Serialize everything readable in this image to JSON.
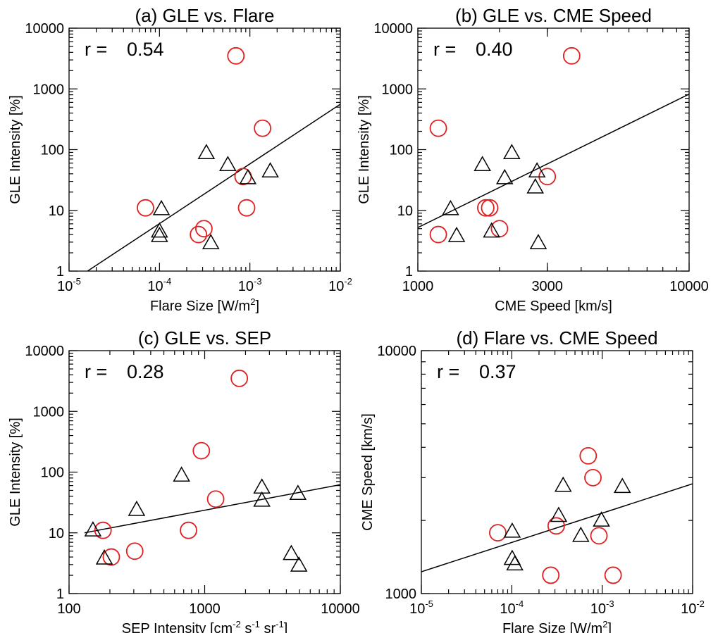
{
  "chart_data": [
    {
      "type": "scatter",
      "title": "(a) GLE vs. Flare",
      "xlabel_parts": [
        "Flare Size [W/m",
        "2",
        "]"
      ],
      "ylabel": "GLE Intensity [%]",
      "x_scale": "log",
      "y_scale": "log",
      "xlim": [
        1e-05,
        0.01
      ],
      "ylim": [
        1,
        10000
      ],
      "xticks": [
        1e-05,
        0.0001,
        0.001,
        0.01
      ],
      "xtick_labels": [
        [
          "10",
          "-5"
        ],
        [
          "10",
          "-4"
        ],
        [
          "10",
          "-3"
        ],
        [
          "10",
          "-2"
        ]
      ],
      "yticks": [
        1,
        10,
        100,
        1000,
        10000
      ],
      "ytick_labels": [
        "1",
        "10",
        "100",
        "1000",
        "10000"
      ],
      "r_label": "r =",
      "r_value": "0.54",
      "fit_line": [
        [
          1.6e-05,
          1
        ],
        [
          0.01,
          560
        ]
      ],
      "series": [
        {
          "marker": "circle",
          "color": "#e02020",
          "points": [
            [
              7e-05,
              11
            ],
            [
              0.0007,
              3500
            ],
            [
              0.00138,
              225
            ],
            [
              0.00084,
              36
            ],
            [
              0.00092,
              11
            ],
            [
              0.00031,
              5
            ],
            [
              0.00027,
              4
            ]
          ]
        },
        {
          "marker": "triangle",
          "color": "#000000",
          "points": [
            [
              0.000105,
              10.5
            ],
            [
              0.0001,
              4.5
            ],
            [
              0.0001,
              3.8
            ],
            [
              0.00033,
              88
            ],
            [
              0.00057,
              56
            ],
            [
              0.00095,
              34
            ],
            [
              0.00168,
              44
            ],
            [
              0.00037,
              2.9
            ]
          ]
        }
      ]
    },
    {
      "type": "scatter",
      "title": "(b) GLE vs. CME Speed",
      "xlabel_parts": [
        "CME Speed [km/s]"
      ],
      "ylabel": "GLE Intensity [%]",
      "x_scale": "log",
      "y_scale": "log",
      "xlim": [
        1000,
        10000
      ],
      "ylim": [
        1,
        10000
      ],
      "xticks": [
        1000,
        3000,
        10000
      ],
      "xtick_labels": [
        [
          "1000"
        ],
        [
          "3000"
        ],
        [
          "10000"
        ]
      ],
      "yticks": [
        1,
        10,
        100,
        1000,
        10000
      ],
      "ytick_labels": [
        "1",
        "10",
        "100",
        "1000",
        "10000"
      ],
      "r_label": "r =",
      "r_value": "0.40",
      "fit_line": [
        [
          1000,
          5.2
        ],
        [
          10000,
          820
        ]
      ],
      "series": [
        {
          "marker": "circle",
          "color": "#e02020",
          "points": [
            [
              1190,
              225
            ],
            [
              1190,
              4
            ],
            [
              1780,
              11
            ],
            [
              1840,
              11
            ],
            [
              2000,
              5
            ],
            [
              3000,
              36
            ],
            [
              3690,
              3500
            ]
          ]
        },
        {
          "marker": "triangle",
          "color": "#000000",
          "points": [
            [
              1320,
              10.5
            ],
            [
              1390,
              3.8
            ],
            [
              1730,
              56
            ],
            [
              1870,
              4.5
            ],
            [
              2090,
              34
            ],
            [
              2220,
              88
            ],
            [
              2710,
              24
            ],
            [
              2750,
              44
            ],
            [
              2780,
              2.9
            ]
          ]
        }
      ]
    },
    {
      "type": "scatter",
      "title": "(c) GLE vs. SEP",
      "xlabel_parts": [
        "SEP Intensity [cm",
        "-2",
        " s",
        "-1",
        " sr",
        "-1",
        "]"
      ],
      "ylabel": "GLE Intensity [%]",
      "x_scale": "log",
      "y_scale": "log",
      "xlim": [
        100,
        10000
      ],
      "ylim": [
        1,
        10000
      ],
      "xticks": [
        100,
        1000,
        10000
      ],
      "xtick_labels": [
        [
          "100"
        ],
        [
          "1000"
        ],
        [
          "10000"
        ]
      ],
      "yticks": [
        1,
        10,
        100,
        1000,
        10000
      ],
      "ytick_labels": [
        "1",
        "10",
        "100",
        "1000",
        "10000"
      ],
      "r_label": "r =",
      "r_value": "0.28",
      "fit_line": [
        [
          130,
          10
        ],
        [
          10000,
          62
        ]
      ],
      "series": [
        {
          "marker": "circle",
          "color": "#e02020",
          "points": [
            [
              178,
              11
            ],
            [
              205,
              4
            ],
            [
              305,
              5
            ],
            [
              760,
              11
            ],
            [
              945,
              225
            ],
            [
              1205,
              36
            ],
            [
              1800,
              3500
            ]
          ]
        },
        {
          "marker": "triangle",
          "color": "#000000",
          "points": [
            [
              150,
              11
            ],
            [
              182,
              3.8
            ],
            [
              315,
              24
            ],
            [
              675,
              88
            ],
            [
              2640,
              56
            ],
            [
              2640,
              34
            ],
            [
              4350,
              4.5
            ],
            [
              4870,
              44
            ],
            [
              4950,
              2.9
            ]
          ]
        }
      ]
    },
    {
      "type": "scatter",
      "title": "(d) Flare vs. CME Speed",
      "xlabel_parts": [
        "Flare Size [W/m",
        "2",
        "]"
      ],
      "ylabel": "CME Speed [km/s]",
      "x_scale": "log",
      "y_scale": "log",
      "xlim": [
        1e-05,
        0.01
      ],
      "ylim": [
        1000,
        10000
      ],
      "xticks": [
        1e-05,
        0.0001,
        0.001,
        0.01
      ],
      "xtick_labels": [
        [
          "10",
          "-5"
        ],
        [
          "10",
          "-4"
        ],
        [
          "10",
          "-3"
        ],
        [
          "10",
          "-2"
        ]
      ],
      "yticks": [
        1000,
        10000
      ],
      "ytick_labels": [
        "1000",
        "10000"
      ],
      "r_label": "r =",
      "r_value": "0.37",
      "fit_line": [
        [
          1e-05,
          1230
        ],
        [
          0.01,
          2830
        ]
      ],
      "series": [
        {
          "marker": "circle",
          "color": "#e02020",
          "points": [
            [
              7e-05,
              1780
            ],
            [
              0.00027,
              1190
            ],
            [
              0.00031,
              1900
            ],
            [
              0.0007,
              3690
            ],
            [
              0.00079,
              3000
            ],
            [
              0.00092,
              1730
            ],
            [
              0.00132,
              1190
            ]
          ]
        },
        {
          "marker": "triangle",
          "color": "#000000",
          "points": [
            [
              0.000101,
              1800
            ],
            [
              0.000101,
              1390
            ],
            [
              0.000108,
              1320
            ],
            [
              0.00033,
              2090
            ],
            [
              0.00037,
              2780
            ],
            [
              0.00058,
              1730
            ],
            [
              0.00098,
              2000
            ],
            [
              0.00167,
              2750
            ]
          ]
        }
      ]
    }
  ]
}
